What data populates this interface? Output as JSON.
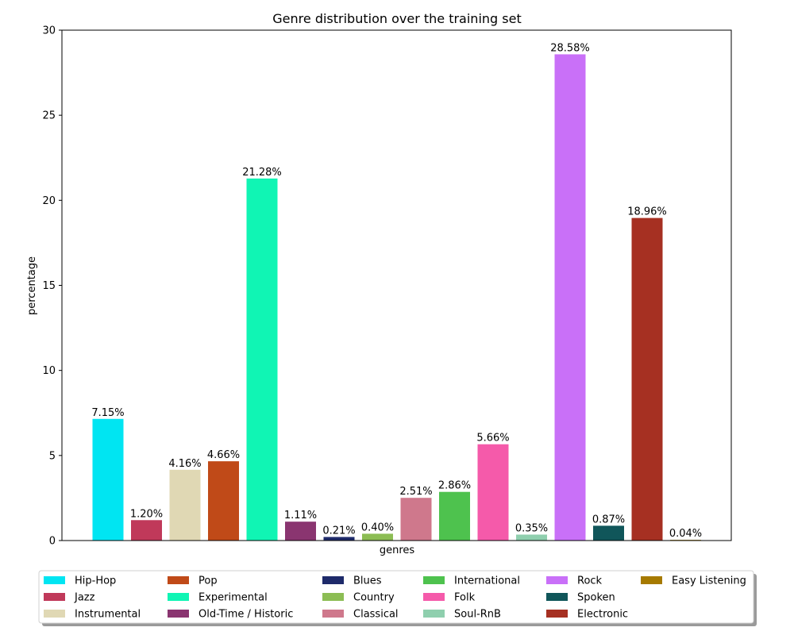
{
  "chart_data": {
    "type": "bar",
    "title": "Genre distribution over the training set",
    "xlabel": "genres",
    "ylabel": "percentage",
    "ylim": [
      0,
      30
    ],
    "yticks": [
      0,
      5,
      10,
      15,
      20,
      25,
      30
    ],
    "grid": false,
    "legend_position": "bottom",
    "categories": [
      "Hip-Hop",
      "Jazz",
      "Instrumental",
      "Pop",
      "Experimental",
      "Old-Time / Historic",
      "Blues",
      "Country",
      "Classical",
      "International",
      "Folk",
      "Soul-RnB",
      "Rock",
      "Spoken",
      "Electronic",
      "Easy Listening"
    ],
    "values": [
      7.15,
      1.2,
      4.16,
      4.66,
      21.28,
      1.11,
      0.21,
      0.4,
      2.51,
      2.86,
      5.66,
      0.35,
      28.58,
      0.87,
      18.96,
      0.04
    ],
    "value_labels": [
      "7.15%",
      "1.20%",
      "4.16%",
      "4.66%",
      "21.28%",
      "1.11%",
      "0.21%",
      "0.40%",
      "2.51%",
      "2.86%",
      "5.66%",
      "0.35%",
      "28.58%",
      "0.87%",
      "18.96%",
      "0.04%"
    ],
    "colors": [
      "#00e5f2",
      "#c0395a",
      "#e0d8b4",
      "#c04a18",
      "#10f5b4",
      "#8a3570",
      "#1e2a6a",
      "#8cbd54",
      "#cf788c",
      "#4ec24e",
      "#f55aaa",
      "#8fcfae",
      "#c970f8",
      "#10565a",
      "#a63022",
      "#a67a00"
    ]
  }
}
